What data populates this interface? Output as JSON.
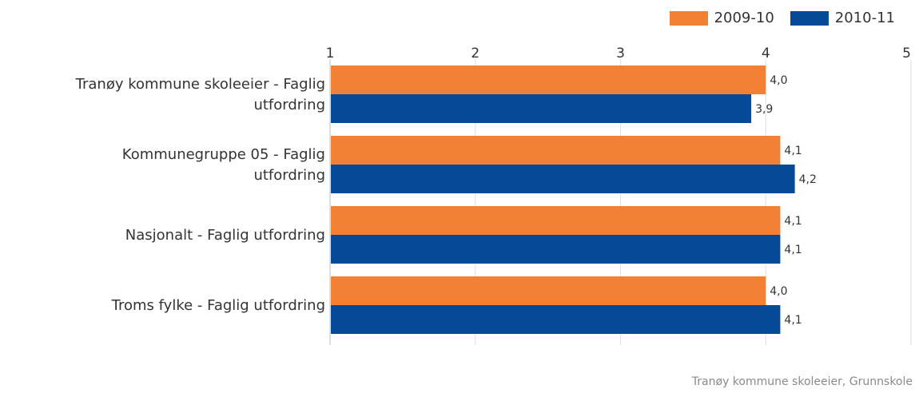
{
  "chart_data": {
    "type": "bar",
    "orientation": "horizontal",
    "categories": [
      [
        "Tranøy kommune skoleeier - Faglig",
        "utfordring"
      ],
      [
        "Kommunegruppe 05 - Faglig",
        "utfordring"
      ],
      [
        "Nasjonalt - Faglig utfordring"
      ],
      [
        "Troms fylke - Faglig utfordring"
      ]
    ],
    "series": [
      {
        "name": "2009-10",
        "values": [
          4.0,
          4.1,
          4.1,
          4.0
        ],
        "labels": [
          "4,0",
          "4,1",
          "4,1",
          "4,0"
        ],
        "color": "#f28035"
      },
      {
        "name": "2010-11",
        "values": [
          3.9,
          4.2,
          4.1,
          4.1
        ],
        "labels": [
          "3,9",
          "4,2",
          "4,1",
          "4,1"
        ],
        "color": "#054a97"
      }
    ],
    "xlim": [
      1,
      5
    ],
    "xticks": [
      "1",
      "2",
      "3",
      "4",
      "5"
    ],
    "grid": true,
    "legend": "top-right"
  },
  "footer": "Tranøy kommune skoleeier, Grunnskole"
}
